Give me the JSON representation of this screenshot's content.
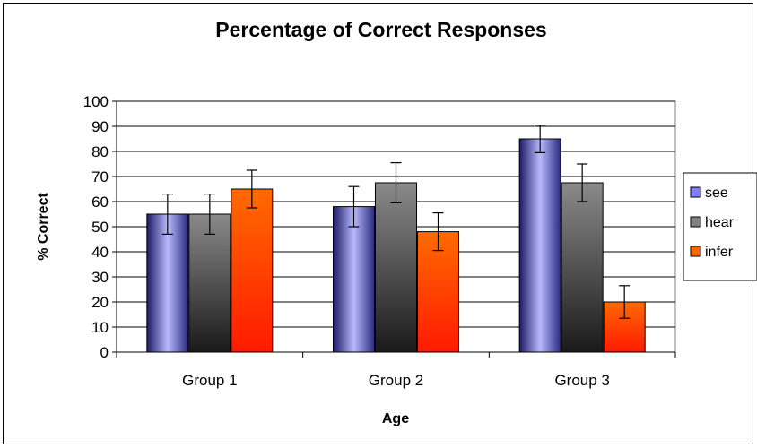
{
  "chart_data": {
    "type": "bar",
    "title": "Percentage of Correct Responses",
    "xlabel": "Age",
    "ylabel": "% Correct",
    "categories": [
      "Group 1",
      "Group 2",
      "Group 3"
    ],
    "ylim": [
      0,
      100
    ],
    "yticks": [
      0,
      10,
      20,
      30,
      40,
      50,
      60,
      70,
      80,
      90,
      100
    ],
    "grid": true,
    "legend_position": "right",
    "series": [
      {
        "name": "see",
        "values": [
          55,
          58,
          85
        ],
        "errors": [
          8,
          8,
          5.5
        ],
        "color": "#8080ff"
      },
      {
        "name": "hear",
        "values": [
          55,
          67.5,
          67.5
        ],
        "errors": [
          8,
          8,
          7.5
        ],
        "color": "#808080"
      },
      {
        "name": "infer",
        "values": [
          65,
          48,
          20
        ],
        "errors": [
          7.5,
          7.5,
          6.5
        ],
        "color": "#ff6600"
      }
    ]
  }
}
